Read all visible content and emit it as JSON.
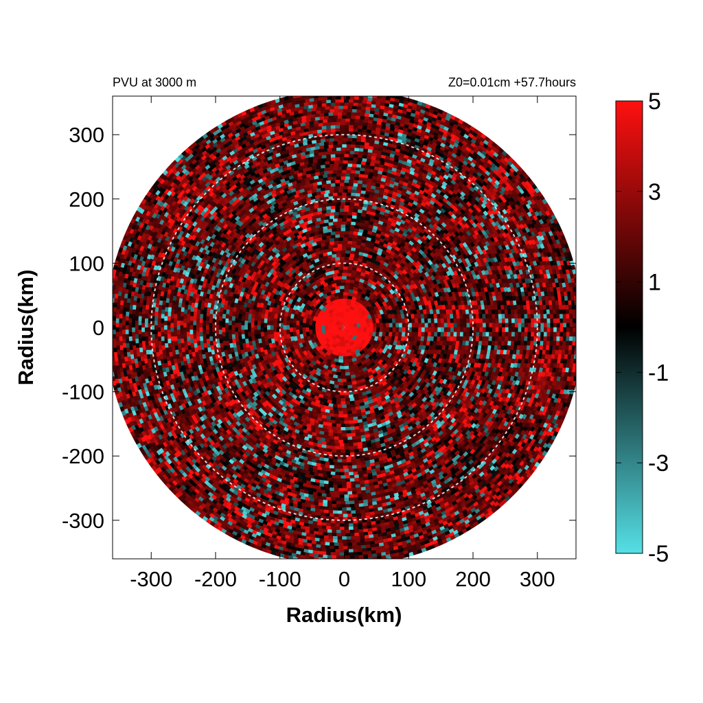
{
  "chart_data": {
    "type": "heatmap",
    "title_left": "PVU at  3000 m",
    "title_right": "Z0=0.01cm  +57.7hours",
    "xlabel": "Radius(km)",
    "ylabel": "Radius(km)",
    "xlim": [
      -360,
      360
    ],
    "ylim": [
      -360,
      360
    ],
    "x_ticks": [
      -300,
      -200,
      -100,
      0,
      100,
      200,
      300
    ],
    "y_ticks": [
      300,
      200,
      100,
      0,
      -100,
      -200,
      -300
    ],
    "x_tick_labels": [
      "-300",
      "-200",
      "-100",
      "0",
      "100",
      "200",
      "300"
    ],
    "y_tick_labels": [
      "300",
      "200",
      "100",
      "0",
      "-100",
      "-200",
      "-300"
    ],
    "data_domain_radius": 370,
    "reference_circles": [
      100,
      200,
      300
    ],
    "colorbar": {
      "min": -5,
      "max": 5,
      "tick_values": [
        5,
        3,
        1,
        -1,
        -3,
        -5
      ],
      "tick_labels": [
        "5",
        "3",
        "1",
        "-1",
        "-3",
        "-5"
      ],
      "colors": {
        "low": "#55e0e6",
        "mid": "#000000",
        "high": "#ff1010"
      }
    },
    "grid": false
  }
}
